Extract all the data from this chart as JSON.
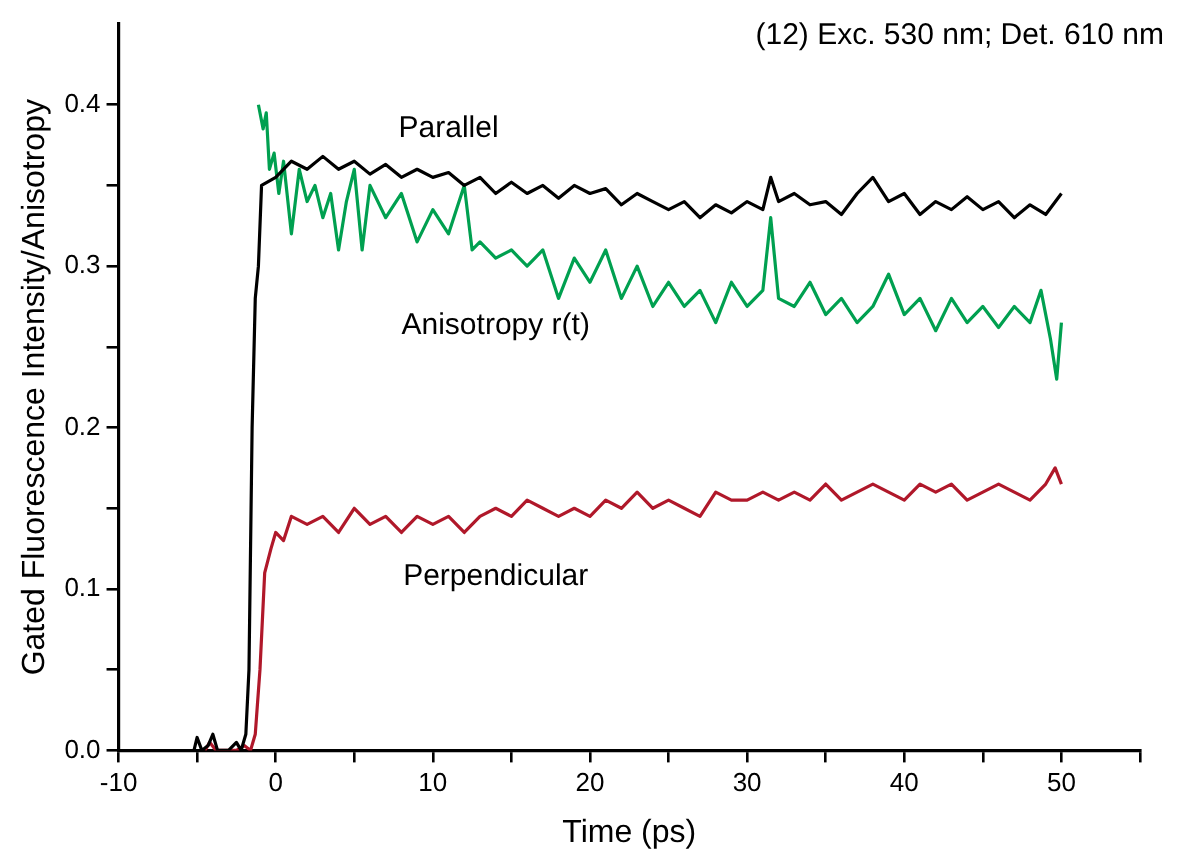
{
  "chart_data": {
    "type": "line",
    "title": "(12) Exc. 530 nm; Det. 610 nm",
    "xlabel": "Time (ps)",
    "ylabel": "Gated Fluorescence Intensity/Anisotropy",
    "xlim": [
      -10,
      55
    ],
    "xticks": [
      -10,
      {
        "value": -5,
        "label": null
      },
      0,
      {
        "value": 5,
        "label": null
      },
      10,
      {
        "value": 15,
        "label": null
      },
      20,
      {
        "value": 25,
        "label": null
      },
      30,
      {
        "value": 35,
        "label": null
      },
      40,
      {
        "value": 45,
        "label": null
      },
      50,
      {
        "value": 55,
        "label": null
      }
    ],
    "ylim": [
      0,
      0.45
    ],
    "yticks": [
      "0.0",
      {
        "value": 0.05,
        "label": null
      },
      0.1,
      {
        "value": 0.15,
        "label": null
      },
      0.2,
      {
        "value": 0.25,
        "label": null
      },
      0.3,
      {
        "value": 0.35,
        "label": null
      },
      0.4
    ],
    "grid": false,
    "legend": false,
    "marker": "none",
    "line_style": "solid",
    "series": [
      {
        "name": "Parallel",
        "color": "#000000",
        "x": [
          -5.2,
          -5,
          -4.7,
          -4.3,
          -4,
          -3.7,
          -3,
          -2.5,
          -2.2,
          -1.9,
          -1.7,
          -1.5,
          -1.3,
          -1.1,
          -0.9,
          0,
          1,
          2,
          3,
          4,
          5,
          6,
          7,
          8,
          9,
          10,
          11,
          12,
          13,
          14,
          15,
          16,
          17,
          18,
          19,
          20,
          21,
          22,
          23,
          24,
          25,
          26,
          27,
          28,
          29,
          30,
          31,
          31.5,
          32,
          33,
          34,
          35,
          36,
          37,
          38,
          39,
          40,
          41,
          42,
          43,
          44,
          45,
          46,
          47,
          48,
          49,
          50
        ],
        "values": [
          0,
          0.008,
          0,
          0.003,
          0.01,
          0,
          0,
          0.005,
          0,
          0.01,
          0.05,
          0.2,
          0.28,
          0.3,
          0.35,
          0.355,
          0.365,
          0.36,
          0.368,
          0.36,
          0.365,
          0.357,
          0.363,
          0.355,
          0.36,
          0.355,
          0.358,
          0.35,
          0.355,
          0.345,
          0.352,
          0.345,
          0.35,
          0.342,
          0.35,
          0.345,
          0.348,
          0.338,
          0.345,
          0.34,
          0.335,
          0.34,
          0.33,
          0.338,
          0.333,
          0.34,
          0.335,
          0.355,
          0.34,
          0.345,
          0.338,
          0.34,
          0.332,
          0.345,
          0.355,
          0.34,
          0.345,
          0.332,
          0.34,
          0.335,
          0.343,
          0.335,
          0.34,
          0.33,
          0.338,
          0.332,
          0.345
        ]
      },
      {
        "name": "Anisotropy r(t)",
        "color": "#00a050",
        "x": [
          -1.1,
          -0.8,
          -0.6,
          -0.4,
          -0.1,
          0.2,
          0.5,
          1,
          1.5,
          2,
          2.5,
          3,
          3.5,
          4,
          4.5,
          5,
          5.5,
          6,
          7,
          8,
          9,
          10,
          11,
          12,
          12.5,
          13,
          14,
          15,
          16,
          17,
          18,
          19,
          20,
          21,
          22,
          23,
          24,
          25,
          26,
          27,
          28,
          29,
          30,
          31,
          31.5,
          32,
          33,
          34,
          35,
          36,
          37,
          38,
          39,
          40,
          41,
          42,
          43,
          44,
          45,
          46,
          47,
          48,
          48.7,
          49.3,
          49.7,
          50
        ],
        "values": [
          0.4,
          0.385,
          0.395,
          0.36,
          0.37,
          0.345,
          0.365,
          0.32,
          0.36,
          0.34,
          0.35,
          0.33,
          0.345,
          0.31,
          0.34,
          0.36,
          0.31,
          0.35,
          0.33,
          0.345,
          0.315,
          0.335,
          0.32,
          0.35,
          0.31,
          0.315,
          0.305,
          0.31,
          0.3,
          0.31,
          0.28,
          0.305,
          0.29,
          0.31,
          0.28,
          0.3,
          0.275,
          0.29,
          0.275,
          0.285,
          0.265,
          0.29,
          0.275,
          0.285,
          0.33,
          0.28,
          0.275,
          0.29,
          0.27,
          0.28,
          0.265,
          0.275,
          0.295,
          0.27,
          0.28,
          0.26,
          0.28,
          0.265,
          0.275,
          0.262,
          0.275,
          0.265,
          0.285,
          0.255,
          0.23,
          0.265
        ]
      },
      {
        "name": "Perpendicular",
        "color": "#b0182a",
        "x": [
          -4.5,
          -4.2,
          -3.8,
          -2.5,
          -2,
          -1.6,
          -1.3,
          -1,
          -0.7,
          -0.3,
          0,
          0.5,
          1,
          2,
          3,
          4,
          5,
          6,
          7,
          8,
          9,
          10,
          11,
          12,
          13,
          14,
          15,
          16,
          17,
          18,
          19,
          20,
          21,
          22,
          23,
          24,
          25,
          26,
          27,
          28,
          29,
          30,
          31,
          32,
          33,
          34,
          35,
          36,
          37,
          38,
          39,
          40,
          41,
          42,
          43,
          44,
          45,
          46,
          47,
          48,
          49,
          49.6,
          50
        ],
        "values": [
          0,
          0.005,
          0,
          0,
          0.003,
          0,
          0.01,
          0.05,
          0.11,
          0.125,
          0.135,
          0.13,
          0.145,
          0.14,
          0.145,
          0.135,
          0.15,
          0.14,
          0.145,
          0.135,
          0.145,
          0.14,
          0.145,
          0.135,
          0.145,
          0.15,
          0.145,
          0.155,
          0.15,
          0.145,
          0.15,
          0.145,
          0.155,
          0.15,
          0.16,
          0.15,
          0.155,
          0.15,
          0.145,
          0.16,
          0.155,
          0.155,
          0.16,
          0.155,
          0.16,
          0.155,
          0.165,
          0.155,
          0.16,
          0.165,
          0.16,
          0.155,
          0.165,
          0.16,
          0.165,
          0.155,
          0.16,
          0.165,
          0.16,
          0.155,
          0.165,
          0.175,
          0.165
        ]
      }
    ]
  }
}
